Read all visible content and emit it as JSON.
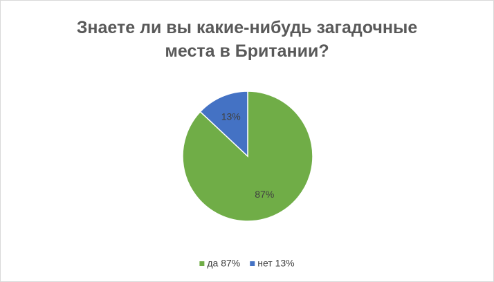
{
  "chart_data": {
    "type": "pie",
    "title": "Знаете ли вы какие-нибудь загадочные места в Британии?",
    "categories": [
      "да 87%",
      "нет 13%"
    ],
    "values": [
      87,
      13
    ],
    "value_labels": [
      "87%",
      "13%"
    ],
    "colors": [
      "#70ad47",
      "#4472c4"
    ],
    "legend": "bottom"
  }
}
